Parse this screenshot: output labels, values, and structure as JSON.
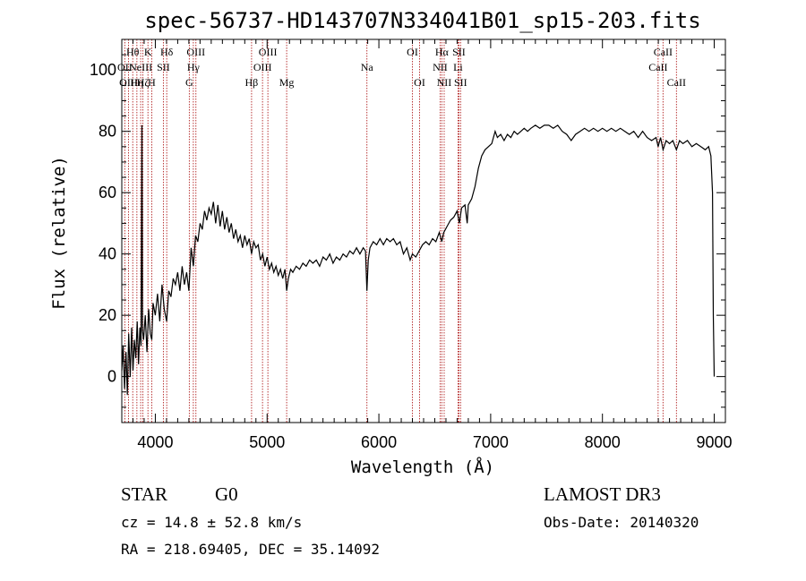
{
  "chart_data": {
    "type": "line",
    "title": "spec-56737-HD143707N334041B01_sp15-203.fits",
    "xlabel": "Wavelength (Å)",
    "ylabel": "Flux (relative)",
    "xlim": [
      3700,
      9100
    ],
    "ylim": [
      -15,
      110
    ],
    "xticks": [
      4000,
      5000,
      6000,
      7000,
      8000,
      9000
    ],
    "yticks": [
      0,
      20,
      40,
      60,
      80,
      100
    ],
    "grid": false,
    "series": [
      {
        "color": "#000000",
        "points": [
          [
            3700,
            2
          ],
          [
            3712,
            10
          ],
          [
            3725,
            -4
          ],
          [
            3738,
            8
          ],
          [
            3750,
            -6
          ],
          [
            3762,
            14
          ],
          [
            3775,
            0
          ],
          [
            3788,
            16
          ],
          [
            3800,
            2
          ],
          [
            3812,
            12
          ],
          [
            3825,
            6
          ],
          [
            3838,
            18
          ],
          [
            3850,
            4
          ],
          [
            3862,
            16
          ],
          [
            3872,
            10
          ],
          [
            3880,
            82
          ],
          [
            3885,
            15
          ],
          [
            3895,
            12
          ],
          [
            3910,
            20
          ],
          [
            3925,
            8
          ],
          [
            3940,
            22
          ],
          [
            3955,
            14
          ],
          [
            3968,
            12
          ],
          [
            3980,
            24
          ],
          [
            4000,
            20
          ],
          [
            4020,
            27
          ],
          [
            4040,
            18
          ],
          [
            4060,
            30
          ],
          [
            4080,
            22
          ],
          [
            4101,
            18
          ],
          [
            4120,
            28
          ],
          [
            4140,
            26
          ],
          [
            4160,
            32
          ],
          [
            4180,
            30
          ],
          [
            4200,
            34
          ],
          [
            4220,
            28
          ],
          [
            4240,
            36
          ],
          [
            4260,
            30
          ],
          [
            4280,
            34
          ],
          [
            4300,
            28
          ],
          [
            4320,
            42
          ],
          [
            4340,
            36
          ],
          [
            4360,
            46
          ],
          [
            4380,
            44
          ],
          [
            4400,
            50
          ],
          [
            4420,
            48
          ],
          [
            4440,
            54
          ],
          [
            4460,
            51
          ],
          [
            4480,
            55
          ],
          [
            4500,
            53
          ],
          [
            4520,
            57
          ],
          [
            4540,
            50
          ],
          [
            4560,
            56
          ],
          [
            4580,
            49
          ],
          [
            4600,
            54
          ],
          [
            4620,
            48
          ],
          [
            4640,
            52
          ],
          [
            4660,
            47
          ],
          [
            4680,
            50
          ],
          [
            4700,
            45
          ],
          [
            4720,
            48
          ],
          [
            4740,
            44
          ],
          [
            4760,
            46
          ],
          [
            4780,
            42
          ],
          [
            4800,
            46
          ],
          [
            4820,
            43
          ],
          [
            4840,
            45
          ],
          [
            4861,
            40
          ],
          [
            4880,
            44
          ],
          [
            4900,
            42
          ],
          [
            4920,
            43
          ],
          [
            4940,
            38
          ],
          [
            4960,
            40
          ],
          [
            4980,
            36
          ],
          [
            5000,
            39
          ],
          [
            5020,
            35
          ],
          [
            5040,
            37
          ],
          [
            5060,
            34
          ],
          [
            5080,
            36
          ],
          [
            5100,
            33
          ],
          [
            5120,
            35
          ],
          [
            5140,
            32
          ],
          [
            5160,
            35
          ],
          [
            5175,
            28
          ],
          [
            5190,
            32
          ],
          [
            5210,
            35
          ],
          [
            5230,
            34
          ],
          [
            5260,
            36
          ],
          [
            5290,
            35
          ],
          [
            5320,
            37
          ],
          [
            5350,
            36
          ],
          [
            5380,
            38
          ],
          [
            5410,
            37
          ],
          [
            5440,
            38
          ],
          [
            5470,
            36
          ],
          [
            5500,
            39
          ],
          [
            5530,
            38
          ],
          [
            5560,
            40
          ],
          [
            5590,
            37
          ],
          [
            5620,
            39
          ],
          [
            5650,
            38
          ],
          [
            5680,
            40
          ],
          [
            5710,
            39
          ],
          [
            5740,
            41
          ],
          [
            5770,
            40
          ],
          [
            5800,
            42
          ],
          [
            5830,
            40
          ],
          [
            5860,
            42
          ],
          [
            5880,
            41
          ],
          [
            5893,
            28
          ],
          [
            5905,
            38
          ],
          [
            5920,
            42
          ],
          [
            5950,
            44
          ],
          [
            5980,
            43
          ],
          [
            6010,
            45
          ],
          [
            6040,
            43
          ],
          [
            6070,
            45
          ],
          [
            6100,
            44
          ],
          [
            6130,
            45
          ],
          [
            6160,
            43
          ],
          [
            6190,
            44
          ],
          [
            6220,
            40
          ],
          [
            6250,
            42
          ],
          [
            6280,
            38
          ],
          [
            6300,
            40
          ],
          [
            6330,
            39
          ],
          [
            6360,
            41
          ],
          [
            6390,
            43
          ],
          [
            6420,
            44
          ],
          [
            6450,
            43
          ],
          [
            6480,
            45
          ],
          [
            6510,
            44
          ],
          [
            6540,
            47
          ],
          [
            6563,
            44
          ],
          [
            6580,
            47
          ],
          [
            6610,
            49
          ],
          [
            6640,
            51
          ],
          [
            6670,
            52
          ],
          [
            6700,
            54
          ],
          [
            6720,
            50
          ],
          [
            6740,
            55
          ],
          [
            6770,
            56
          ],
          [
            6790,
            50
          ],
          [
            6800,
            56
          ],
          [
            6830,
            58
          ],
          [
            6860,
            62
          ],
          [
            6890,
            68
          ],
          [
            6920,
            72
          ],
          [
            6950,
            74
          ],
          [
            6980,
            75
          ],
          [
            7010,
            76
          ],
          [
            7040,
            80
          ],
          [
            7060,
            78
          ],
          [
            7090,
            79
          ],
          [
            7120,
            77
          ],
          [
            7150,
            79
          ],
          [
            7180,
            78
          ],
          [
            7210,
            80
          ],
          [
            7240,
            79
          ],
          [
            7270,
            80
          ],
          [
            7300,
            81
          ],
          [
            7330,
            80
          ],
          [
            7360,
            81
          ],
          [
            7400,
            82
          ],
          [
            7440,
            81
          ],
          [
            7480,
            82
          ],
          [
            7520,
            82
          ],
          [
            7560,
            81
          ],
          [
            7600,
            82
          ],
          [
            7640,
            80
          ],
          [
            7680,
            79
          ],
          [
            7720,
            77
          ],
          [
            7760,
            79
          ],
          [
            7800,
            80
          ],
          [
            7840,
            81
          ],
          [
            7880,
            80
          ],
          [
            7920,
            81
          ],
          [
            7960,
            80
          ],
          [
            8000,
            81
          ],
          [
            8040,
            80
          ],
          [
            8080,
            81
          ],
          [
            8120,
            80
          ],
          [
            8160,
            81
          ],
          [
            8200,
            80
          ],
          [
            8240,
            79
          ],
          [
            8280,
            80
          ],
          [
            8320,
            78
          ],
          [
            8360,
            80
          ],
          [
            8400,
            78
          ],
          [
            8440,
            77
          ],
          [
            8480,
            78
          ],
          [
            8498,
            75
          ],
          [
            8520,
            78
          ],
          [
            8542,
            74
          ],
          [
            8570,
            77
          ],
          [
            8600,
            76
          ],
          [
            8630,
            77
          ],
          [
            8662,
            74
          ],
          [
            8690,
            77
          ],
          [
            8720,
            76
          ],
          [
            8760,
            77
          ],
          [
            8800,
            75
          ],
          [
            8840,
            76
          ],
          [
            8880,
            75
          ],
          [
            8920,
            74
          ],
          [
            8950,
            75
          ],
          [
            8970,
            72
          ],
          [
            8985,
            60
          ],
          [
            8992,
            20
          ],
          [
            9000,
            0
          ]
        ]
      }
    ],
    "lines": [
      {
        "x": 3727,
        "labels": [
          "",
          "OII",
          ""
        ]
      },
      {
        "x": 3760,
        "labels": [
          "",
          "",
          "OIII"
        ]
      },
      {
        "x": 3798,
        "labels": [
          "Hθ",
          "",
          ""
        ]
      },
      {
        "x": 3835,
        "labels": [
          "",
          "",
          "Hη"
        ]
      },
      {
        "x": 3869,
        "labels": [
          "",
          "NeIII",
          ""
        ]
      },
      {
        "x": 3889,
        "labels": [
          "",
          "",
          "Hζ"
        ]
      },
      {
        "x": 3934,
        "labels": [
          "K",
          "",
          ""
        ]
      },
      {
        "x": 3968,
        "labels": [
          "",
          "",
          "H"
        ]
      },
      {
        "x": 4072,
        "labels": [
          "",
          "SII",
          ""
        ]
      },
      {
        "x": 4102,
        "labels": [
          "Hδ",
          "",
          ""
        ]
      },
      {
        "x": 4304,
        "labels": [
          "",
          "",
          "G"
        ]
      },
      {
        "x": 4340,
        "labels": [
          "",
          "Hγ",
          ""
        ]
      },
      {
        "x": 4363,
        "labels": [
          "OIII",
          "",
          ""
        ]
      },
      {
        "x": 4861,
        "labels": [
          "",
          "",
          "Hβ"
        ]
      },
      {
        "x": 4959,
        "labels": [
          "",
          "OIII",
          ""
        ]
      },
      {
        "x": 5007,
        "labels": [
          "OIII",
          "",
          ""
        ]
      },
      {
        "x": 5175,
        "labels": [
          "",
          "",
          "Mg"
        ]
      },
      {
        "x": 5893,
        "labels": [
          "",
          "Na",
          ""
        ]
      },
      {
        "x": 6300,
        "labels": [
          "OI",
          "",
          ""
        ]
      },
      {
        "x": 6364,
        "labels": [
          "",
          "",
          "OI"
        ]
      },
      {
        "x": 6548,
        "labels": [
          "",
          "NII",
          ""
        ]
      },
      {
        "x": 6563,
        "labels": [
          "Hα",
          "",
          ""
        ]
      },
      {
        "x": 6584,
        "labels": [
          "",
          "",
          "NII"
        ]
      },
      {
        "x": 6708,
        "labels": [
          "",
          "Li",
          ""
        ]
      },
      {
        "x": 6716,
        "labels": [
          "SII",
          "",
          ""
        ]
      },
      {
        "x": 6731,
        "labels": [
          "",
          "",
          "SII"
        ]
      },
      {
        "x": 8498,
        "labels": [
          "",
          "CaII",
          ""
        ]
      },
      {
        "x": 8542,
        "labels": [
          "CaII",
          "",
          ""
        ]
      },
      {
        "x": 8662,
        "labels": [
          "",
          "",
          "CaII"
        ]
      }
    ]
  },
  "info": {
    "class_label": "STAR",
    "subclass": "G0",
    "survey": "LAMOST DR3",
    "redshift": "cz = 14.8 ± 52.8 km/s",
    "obs_date": "Obs-Date: 20140320",
    "coords": "RA = 218.69405, DEC =  35.14092"
  },
  "colors": {
    "spectrum": "#000000",
    "line_markers": "#b22222",
    "axes": "#000000"
  }
}
